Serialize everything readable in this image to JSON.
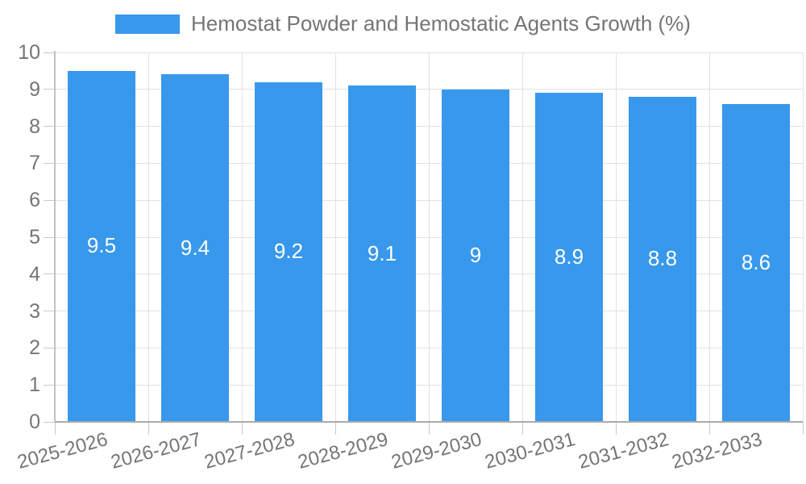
{
  "chart_data": {
    "type": "bar",
    "title": "Hemostat Powder and Hemostatic Agents Growth (%)",
    "categories": [
      "2025-2026",
      "2026-2027",
      "2027-2028",
      "2028-2029",
      "2029-2030",
      "2030-2031",
      "2031-2032",
      "2032-2033"
    ],
    "values": [
      9.5,
      9.4,
      9.2,
      9.1,
      9,
      8.9,
      8.8,
      8.6
    ],
    "value_labels": [
      "9.5",
      "9.4",
      "9.2",
      "9.1",
      "9",
      "8.9",
      "8.8",
      "8.6"
    ],
    "xlabel": "",
    "ylabel": "",
    "ylim": [
      0,
      10
    ],
    "ytick_step": 1,
    "ytick_labels": [
      "0",
      "1",
      "2",
      "3",
      "4",
      "5",
      "6",
      "7",
      "8",
      "9",
      "10"
    ],
    "grid": true,
    "legend_position": "top-center",
    "colors": {
      "bar": "#3898ec",
      "value_label": "#ffffff",
      "axis_text": "#757575",
      "gridline": "#e2e2e2",
      "axis_line": "#ababab"
    }
  }
}
